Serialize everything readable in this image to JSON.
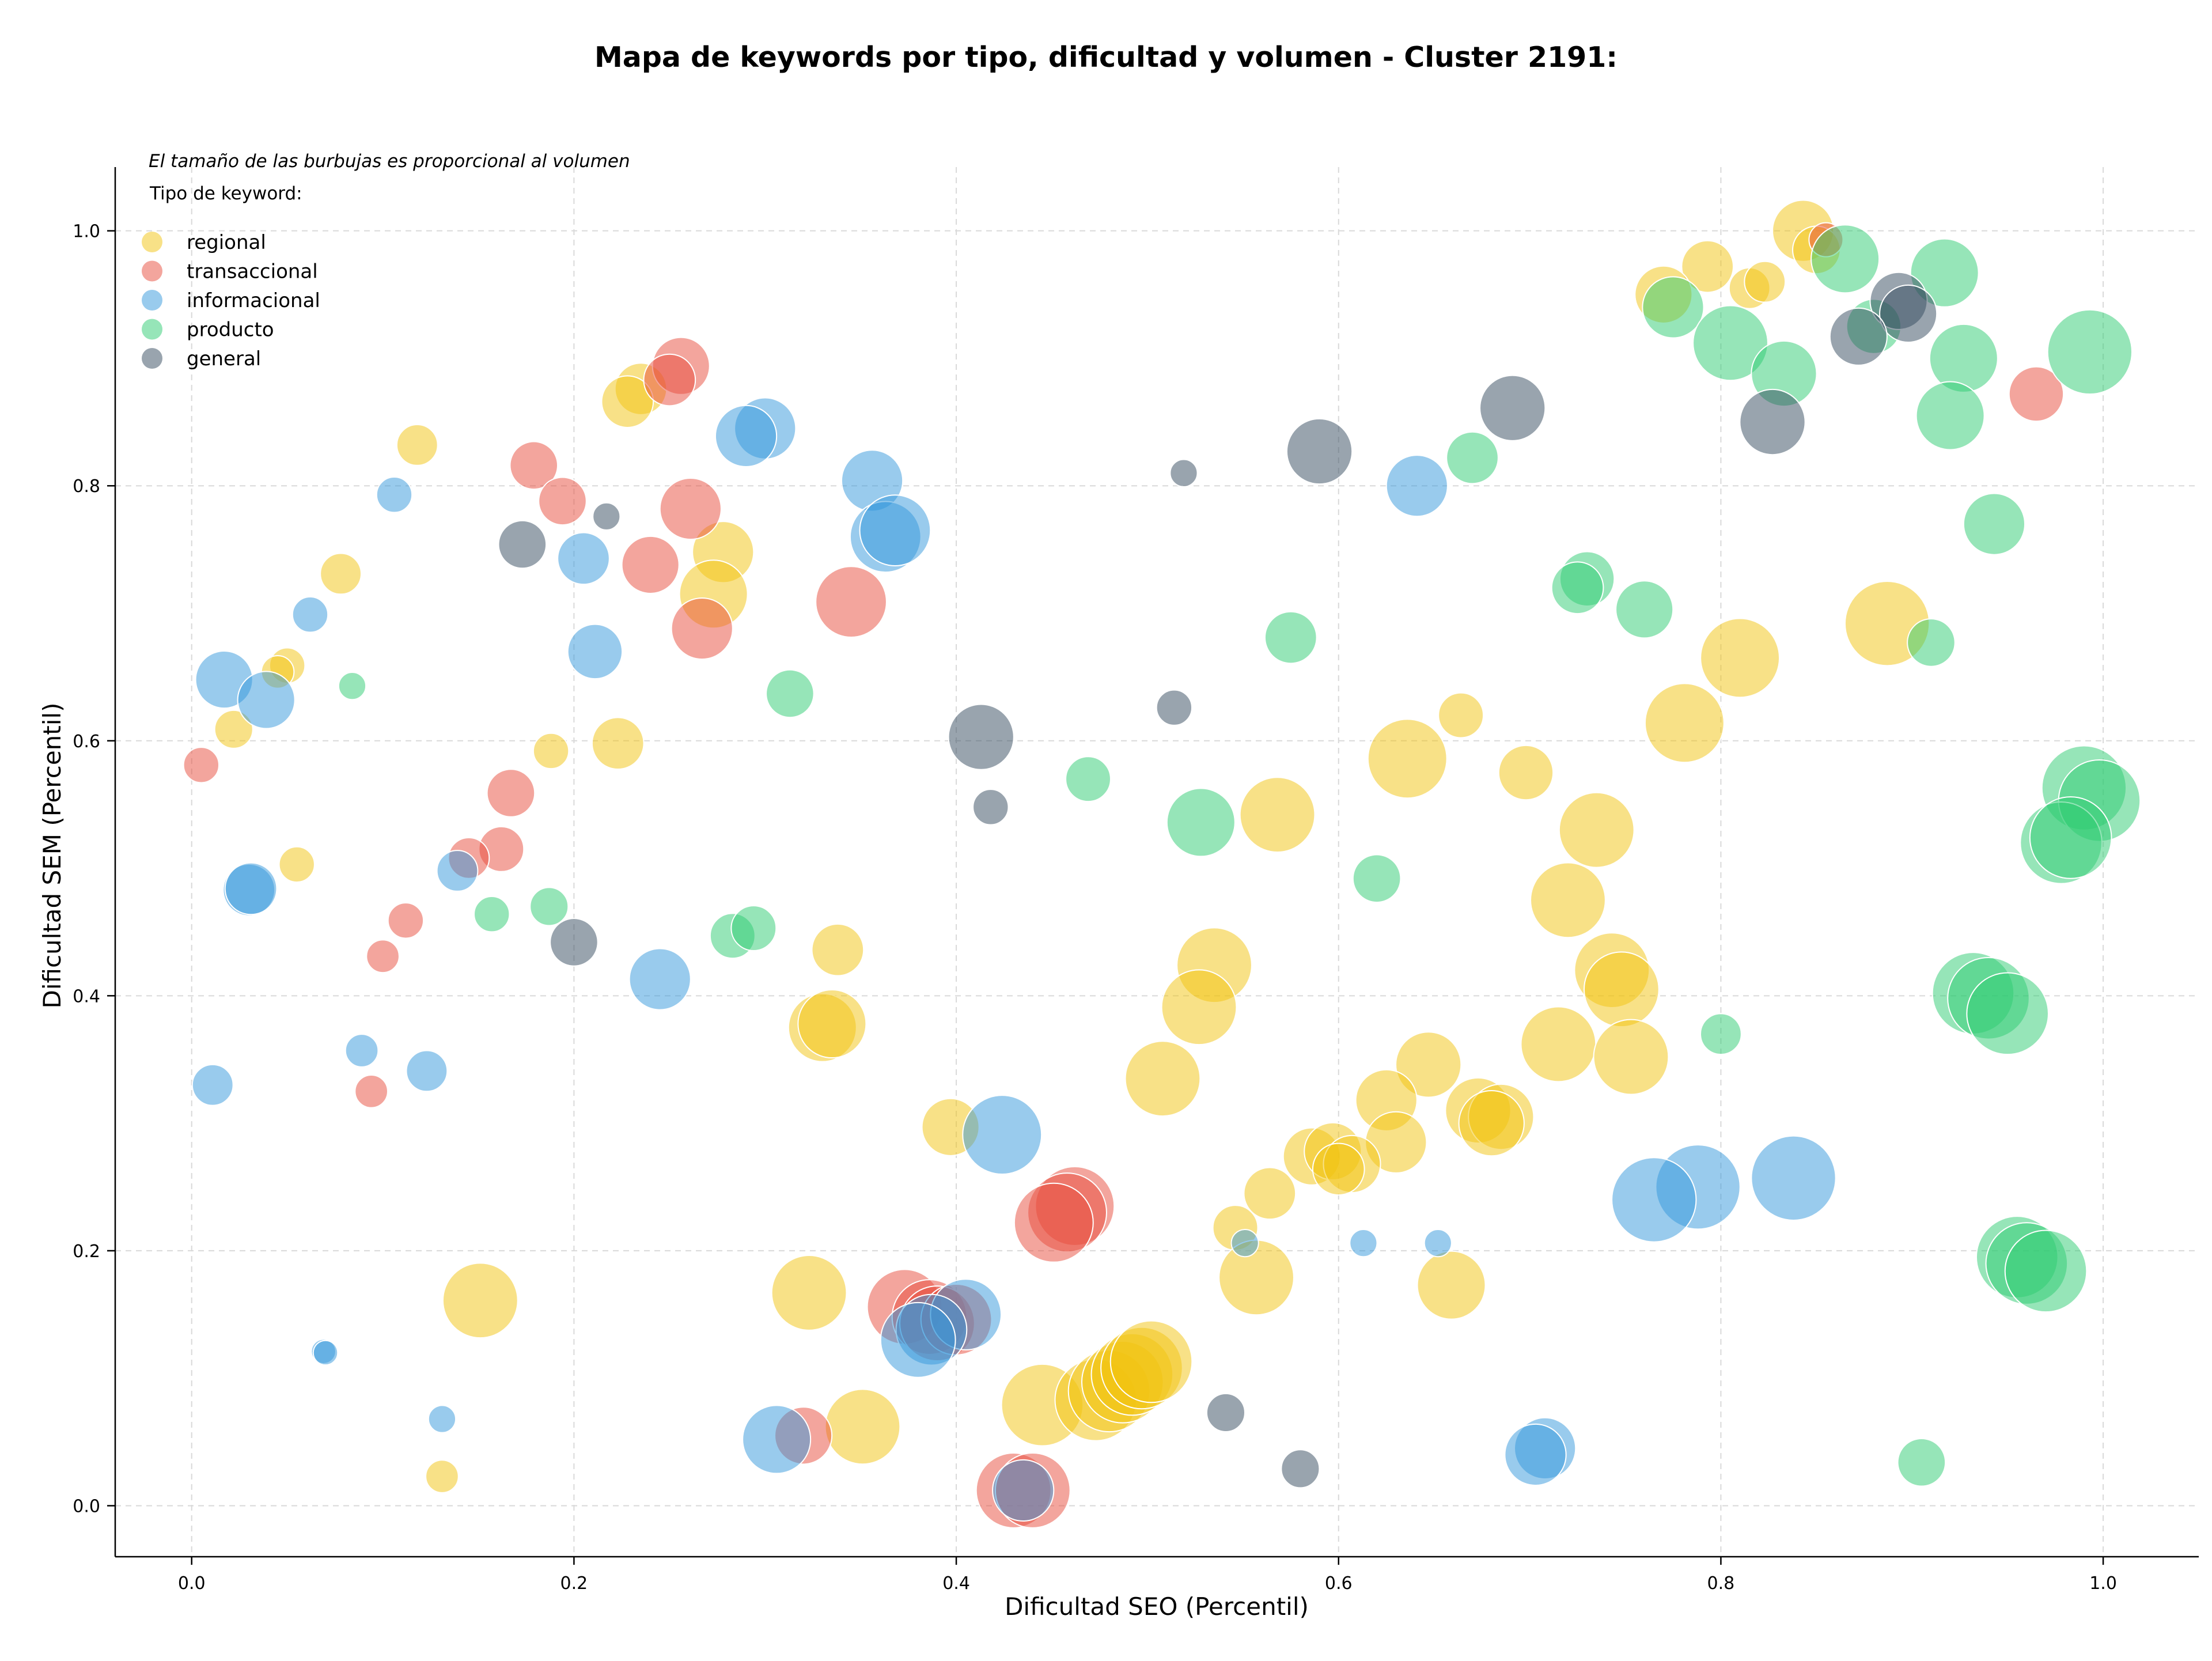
{
  "chart_data": {
    "type": "scatter",
    "title": "Mapa de keywords por tipo, dificultad y volumen - Cluster 2191:",
    "xlabel": "Dificultad SEO (Percentil)",
    "ylabel": "Dificultad SEM (Percentil)",
    "note": "El tamaño de las burbujas es proporcional al volumen",
    "legend_title": "Tipo de keyword:",
    "legend_position": "top-left",
    "xlim": [
      -0.04,
      1.05
    ],
    "ylim": [
      -0.04,
      1.05
    ],
    "x_ticks": [
      "0.0",
      "0.2",
      "0.4",
      "0.6",
      "0.8",
      "1.0"
    ],
    "y_ticks": [
      "0.0",
      "0.2",
      "0.4",
      "0.6",
      "0.8",
      "1.0"
    ],
    "grid": true,
    "series": [
      {
        "name": "regional",
        "color": "#f1c40f",
        "points": [
          {
            "x": 0.843,
            "y": 1.0,
            "s": 0.45
          },
          {
            "x": 0.85,
            "y": 0.985,
            "s": 0.35
          },
          {
            "x": 0.793,
            "y": 0.972,
            "s": 0.38
          },
          {
            "x": 0.77,
            "y": 0.95,
            "s": 0.42
          },
          {
            "x": 0.815,
            "y": 0.955,
            "s": 0.3
          },
          {
            "x": 0.823,
            "y": 0.96,
            "s": 0.3
          },
          {
            "x": 0.235,
            "y": 0.876,
            "s": 0.38
          },
          {
            "x": 0.228,
            "y": 0.866,
            "s": 0.38
          },
          {
            "x": 0.118,
            "y": 0.832,
            "s": 0.3
          },
          {
            "x": 0.078,
            "y": 0.731,
            "s": 0.3
          },
          {
            "x": 0.278,
            "y": 0.748,
            "s": 0.45
          },
          {
            "x": 0.273,
            "y": 0.715,
            "s": 0.5
          },
          {
            "x": 0.05,
            "y": 0.659,
            "s": 0.26
          },
          {
            "x": 0.045,
            "y": 0.654,
            "s": 0.24
          },
          {
            "x": 0.022,
            "y": 0.609,
            "s": 0.28
          },
          {
            "x": 0.188,
            "y": 0.592,
            "s": 0.26
          },
          {
            "x": 0.223,
            "y": 0.598,
            "s": 0.38
          },
          {
            "x": 0.055,
            "y": 0.503,
            "s": 0.26
          },
          {
            "x": 0.887,
            "y": 0.692,
            "s": 0.62
          },
          {
            "x": 0.81,
            "y": 0.665,
            "s": 0.58
          },
          {
            "x": 0.781,
            "y": 0.614,
            "s": 0.58
          },
          {
            "x": 0.664,
            "y": 0.62,
            "s": 0.33
          },
          {
            "x": 0.636,
            "y": 0.586,
            "s": 0.58
          },
          {
            "x": 0.698,
            "y": 0.575,
            "s": 0.4
          },
          {
            "x": 0.568,
            "y": 0.542,
            "s": 0.55
          },
          {
            "x": 0.735,
            "y": 0.53,
            "s": 0.55
          },
          {
            "x": 0.72,
            "y": 0.475,
            "s": 0.55
          },
          {
            "x": 0.535,
            "y": 0.424,
            "s": 0.55
          },
          {
            "x": 0.527,
            "y": 0.391,
            "s": 0.55
          },
          {
            "x": 0.743,
            "y": 0.42,
            "s": 0.55
          },
          {
            "x": 0.748,
            "y": 0.405,
            "s": 0.55
          },
          {
            "x": 0.338,
            "y": 0.436,
            "s": 0.38
          },
          {
            "x": 0.33,
            "y": 0.375,
            "s": 0.5
          },
          {
            "x": 0.335,
            "y": 0.378,
            "s": 0.5
          },
          {
            "x": 0.715,
            "y": 0.362,
            "s": 0.55
          },
          {
            "x": 0.753,
            "y": 0.352,
            "s": 0.55
          },
          {
            "x": 0.647,
            "y": 0.346,
            "s": 0.48
          },
          {
            "x": 0.508,
            "y": 0.335,
            "s": 0.55
          },
          {
            "x": 0.625,
            "y": 0.318,
            "s": 0.45
          },
          {
            "x": 0.673,
            "y": 0.31,
            "s": 0.48
          },
          {
            "x": 0.685,
            "y": 0.305,
            "s": 0.48
          },
          {
            "x": 0.68,
            "y": 0.3,
            "s": 0.48
          },
          {
            "x": 0.397,
            "y": 0.297,
            "s": 0.42
          },
          {
            "x": 0.63,
            "y": 0.285,
            "s": 0.45
          },
          {
            "x": 0.586,
            "y": 0.274,
            "s": 0.42
          },
          {
            "x": 0.597,
            "y": 0.278,
            "s": 0.42
          },
          {
            "x": 0.607,
            "y": 0.268,
            "s": 0.42
          },
          {
            "x": 0.6,
            "y": 0.264,
            "s": 0.38
          },
          {
            "x": 0.564,
            "y": 0.245,
            "s": 0.38
          },
          {
            "x": 0.546,
            "y": 0.218,
            "s": 0.33
          },
          {
            "x": 0.557,
            "y": 0.179,
            "s": 0.55
          },
          {
            "x": 0.659,
            "y": 0.173,
            "s": 0.5
          },
          {
            "x": 0.151,
            "y": 0.161,
            "s": 0.55
          },
          {
            "x": 0.323,
            "y": 0.167,
            "s": 0.55
          },
          {
            "x": 0.351,
            "y": 0.062,
            "s": 0.55
          },
          {
            "x": 0.445,
            "y": 0.079,
            "s": 0.6
          },
          {
            "x": 0.473,
            "y": 0.083,
            "s": 0.6
          },
          {
            "x": 0.48,
            "y": 0.09,
            "s": 0.6
          },
          {
            "x": 0.487,
            "y": 0.097,
            "s": 0.6
          },
          {
            "x": 0.492,
            "y": 0.103,
            "s": 0.6
          },
          {
            "x": 0.497,
            "y": 0.108,
            "s": 0.6
          },
          {
            "x": 0.502,
            "y": 0.113,
            "s": 0.6
          },
          {
            "x": 0.131,
            "y": 0.023,
            "s": 0.24
          }
        ]
      },
      {
        "name": "transaccional",
        "color": "#e74c3c",
        "points": [
          {
            "x": 0.855,
            "y": 0.993,
            "s": 0.25
          },
          {
            "x": 0.965,
            "y": 0.872,
            "s": 0.4
          },
          {
            "x": 0.256,
            "y": 0.894,
            "s": 0.42
          },
          {
            "x": 0.25,
            "y": 0.883,
            "s": 0.38
          },
          {
            "x": 0.179,
            "y": 0.816,
            "s": 0.35
          },
          {
            "x": 0.194,
            "y": 0.788,
            "s": 0.35
          },
          {
            "x": 0.261,
            "y": 0.782,
            "s": 0.45
          },
          {
            "x": 0.24,
            "y": 0.738,
            "s": 0.42
          },
          {
            "x": 0.345,
            "y": 0.709,
            "s": 0.52
          },
          {
            "x": 0.267,
            "y": 0.688,
            "s": 0.45
          },
          {
            "x": 0.005,
            "y": 0.581,
            "s": 0.26
          },
          {
            "x": 0.167,
            "y": 0.559,
            "s": 0.35
          },
          {
            "x": 0.162,
            "y": 0.515,
            "s": 0.33
          },
          {
            "x": 0.145,
            "y": 0.508,
            "s": 0.3
          },
          {
            "x": 0.112,
            "y": 0.459,
            "s": 0.26
          },
          {
            "x": 0.1,
            "y": 0.431,
            "s": 0.24
          },
          {
            "x": 0.094,
            "y": 0.325,
            "s": 0.24
          },
          {
            "x": 0.462,
            "y": 0.235,
            "s": 0.58
          },
          {
            "x": 0.458,
            "y": 0.23,
            "s": 0.58
          },
          {
            "x": 0.451,
            "y": 0.222,
            "s": 0.58
          },
          {
            "x": 0.373,
            "y": 0.156,
            "s": 0.55
          },
          {
            "x": 0.386,
            "y": 0.148,
            "s": 0.55
          },
          {
            "x": 0.39,
            "y": 0.143,
            "s": 0.55
          },
          {
            "x": 0.4,
            "y": 0.146,
            "s": 0.52
          },
          {
            "x": 0.32,
            "y": 0.055,
            "s": 0.42
          },
          {
            "x": 0.43,
            "y": 0.012,
            "s": 0.55
          },
          {
            "x": 0.44,
            "y": 0.012,
            "s": 0.55
          }
        ]
      },
      {
        "name": "informacional",
        "color": "#3498db",
        "points": [
          {
            "x": 0.3,
            "y": 0.845,
            "s": 0.45
          },
          {
            "x": 0.29,
            "y": 0.839,
            "s": 0.45
          },
          {
            "x": 0.356,
            "y": 0.804,
            "s": 0.45
          },
          {
            "x": 0.106,
            "y": 0.793,
            "s": 0.26
          },
          {
            "x": 0.641,
            "y": 0.8,
            "s": 0.45
          },
          {
            "x": 0.363,
            "y": 0.76,
            "s": 0.52
          },
          {
            "x": 0.368,
            "y": 0.765,
            "s": 0.52
          },
          {
            "x": 0.205,
            "y": 0.743,
            "s": 0.38
          },
          {
            "x": 0.062,
            "y": 0.699,
            "s": 0.26
          },
          {
            "x": 0.211,
            "y": 0.67,
            "s": 0.4
          },
          {
            "x": 0.017,
            "y": 0.648,
            "s": 0.42
          },
          {
            "x": 0.039,
            "y": 0.632,
            "s": 0.42
          },
          {
            "x": 0.03,
            "y": 0.483,
            "s": 0.38
          },
          {
            "x": 0.031,
            "y": 0.484,
            "s": 0.38
          },
          {
            "x": 0.139,
            "y": 0.498,
            "s": 0.3
          },
          {
            "x": 0.245,
            "y": 0.413,
            "s": 0.45
          },
          {
            "x": 0.089,
            "y": 0.357,
            "s": 0.24
          },
          {
            "x": 0.123,
            "y": 0.341,
            "s": 0.3
          },
          {
            "x": 0.011,
            "y": 0.33,
            "s": 0.3
          },
          {
            "x": 0.424,
            "y": 0.291,
            "s": 0.58
          },
          {
            "x": 0.838,
            "y": 0.257,
            "s": 0.62
          },
          {
            "x": 0.788,
            "y": 0.25,
            "s": 0.62
          },
          {
            "x": 0.765,
            "y": 0.24,
            "s": 0.62
          },
          {
            "x": 0.551,
            "y": 0.206,
            "s": 0.2
          },
          {
            "x": 0.613,
            "y": 0.206,
            "s": 0.2
          },
          {
            "x": 0.652,
            "y": 0.206,
            "s": 0.2
          },
          {
            "x": 0.405,
            "y": 0.15,
            "s": 0.52
          },
          {
            "x": 0.387,
            "y": 0.138,
            "s": 0.52
          },
          {
            "x": 0.38,
            "y": 0.13,
            "s": 0.55
          },
          {
            "x": 0.069,
            "y": 0.121,
            "s": 0.18
          },
          {
            "x": 0.07,
            "y": 0.12,
            "s": 0.18
          },
          {
            "x": 0.131,
            "y": 0.068,
            "s": 0.2
          },
          {
            "x": 0.306,
            "y": 0.052,
            "s": 0.5
          },
          {
            "x": 0.708,
            "y": 0.045,
            "s": 0.45
          },
          {
            "x": 0.703,
            "y": 0.04,
            "s": 0.45
          },
          {
            "x": 0.435,
            "y": 0.012,
            "s": 0.45
          }
        ]
      },
      {
        "name": "producto",
        "color": "#2ecc71",
        "points": [
          {
            "x": 0.865,
            "y": 0.978,
            "s": 0.5
          },
          {
            "x": 0.917,
            "y": 0.967,
            "s": 0.5
          },
          {
            "x": 0.775,
            "y": 0.94,
            "s": 0.45
          },
          {
            "x": 0.805,
            "y": 0.912,
            "s": 0.55
          },
          {
            "x": 0.88,
            "y": 0.925,
            "s": 0.4
          },
          {
            "x": 0.993,
            "y": 0.905,
            "s": 0.62
          },
          {
            "x": 0.833,
            "y": 0.888,
            "s": 0.48
          },
          {
            "x": 0.927,
            "y": 0.9,
            "s": 0.5
          },
          {
            "x": 0.92,
            "y": 0.855,
            "s": 0.5
          },
          {
            "x": 0.67,
            "y": 0.822,
            "s": 0.38
          },
          {
            "x": 0.943,
            "y": 0.77,
            "s": 0.45
          },
          {
            "x": 0.73,
            "y": 0.727,
            "s": 0.4
          },
          {
            "x": 0.725,
            "y": 0.72,
            "s": 0.38
          },
          {
            "x": 0.76,
            "y": 0.703,
            "s": 0.42
          },
          {
            "x": 0.575,
            "y": 0.681,
            "s": 0.38
          },
          {
            "x": 0.91,
            "y": 0.677,
            "s": 0.35
          },
          {
            "x": 0.084,
            "y": 0.643,
            "s": 0.2
          },
          {
            "x": 0.313,
            "y": 0.637,
            "s": 0.35
          },
          {
            "x": 0.469,
            "y": 0.57,
            "s": 0.33
          },
          {
            "x": 0.528,
            "y": 0.536,
            "s": 0.5
          },
          {
            "x": 0.99,
            "y": 0.563,
            "s": 0.62
          },
          {
            "x": 0.998,
            "y": 0.553,
            "s": 0.6
          },
          {
            "x": 0.978,
            "y": 0.52,
            "s": 0.6
          },
          {
            "x": 0.983,
            "y": 0.524,
            "s": 0.6
          },
          {
            "x": 0.62,
            "y": 0.492,
            "s": 0.35
          },
          {
            "x": 0.157,
            "y": 0.464,
            "s": 0.26
          },
          {
            "x": 0.187,
            "y": 0.47,
            "s": 0.28
          },
          {
            "x": 0.283,
            "y": 0.447,
            "s": 0.33
          },
          {
            "x": 0.294,
            "y": 0.453,
            "s": 0.33
          },
          {
            "x": 0.932,
            "y": 0.402,
            "s": 0.6
          },
          {
            "x": 0.94,
            "y": 0.398,
            "s": 0.6
          },
          {
            "x": 0.95,
            "y": 0.386,
            "s": 0.6
          },
          {
            "x": 0.8,
            "y": 0.37,
            "s": 0.3
          },
          {
            "x": 0.955,
            "y": 0.195,
            "s": 0.6
          },
          {
            "x": 0.96,
            "y": 0.19,
            "s": 0.6
          },
          {
            "x": 0.97,
            "y": 0.184,
            "s": 0.6
          },
          {
            "x": 0.905,
            "y": 0.034,
            "s": 0.35
          }
        ]
      },
      {
        "name": "general",
        "color": "#34495e",
        "points": [
          {
            "x": 0.893,
            "y": 0.945,
            "s": 0.42
          },
          {
            "x": 0.898,
            "y": 0.935,
            "s": 0.42
          },
          {
            "x": 0.872,
            "y": 0.917,
            "s": 0.42
          },
          {
            "x": 0.691,
            "y": 0.861,
            "s": 0.48
          },
          {
            "x": 0.827,
            "y": 0.85,
            "s": 0.48
          },
          {
            "x": 0.59,
            "y": 0.827,
            "s": 0.48
          },
          {
            "x": 0.519,
            "y": 0.81,
            "s": 0.2
          },
          {
            "x": 0.217,
            "y": 0.776,
            "s": 0.2
          },
          {
            "x": 0.173,
            "y": 0.754,
            "s": 0.35
          },
          {
            "x": 0.413,
            "y": 0.603,
            "s": 0.48
          },
          {
            "x": 0.514,
            "y": 0.626,
            "s": 0.26
          },
          {
            "x": 0.418,
            "y": 0.548,
            "s": 0.26
          },
          {
            "x": 0.2,
            "y": 0.442,
            "s": 0.35
          },
          {
            "x": 0.541,
            "y": 0.073,
            "s": 0.28
          },
          {
            "x": 0.58,
            "y": 0.029,
            "s": 0.28
          }
        ]
      }
    ]
  }
}
